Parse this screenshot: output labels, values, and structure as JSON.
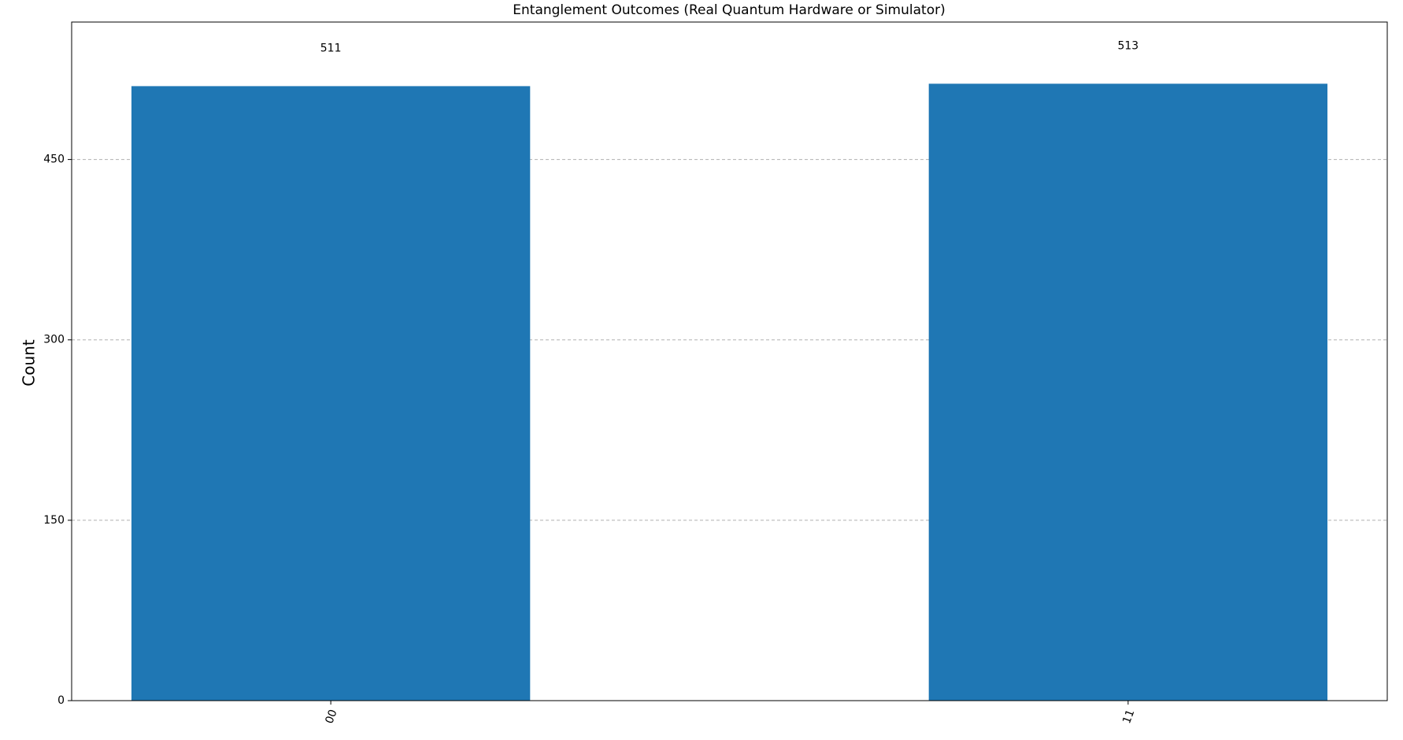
{
  "chart_data": {
    "type": "bar",
    "title": "Entanglement Outcomes (Real Quantum Hardware or Simulator)",
    "y_label": "Count",
    "categories": [
      "00",
      "11"
    ],
    "values": [
      511,
      513
    ],
    "color": "#1f77b4",
    "ylim": [
      0,
      564.3
    ],
    "yticks": [
      0,
      150,
      300,
      450
    ],
    "grid": true
  }
}
